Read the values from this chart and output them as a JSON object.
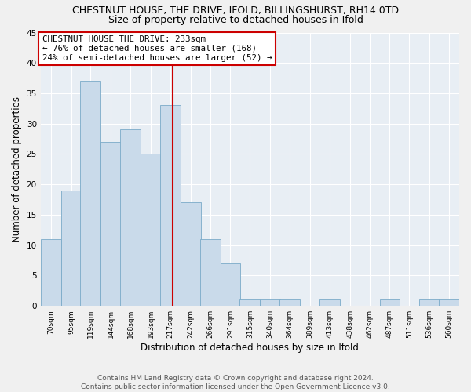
{
  "title1": "CHESTNUT HOUSE, THE DRIVE, IFOLD, BILLINGSHURST, RH14 0TD",
  "title2": "Size of property relative to detached houses in Ifold",
  "xlabel": "Distribution of detached houses by size in Ifold",
  "ylabel": "Number of detached properties",
  "footer1": "Contains HM Land Registry data © Crown copyright and database right 2024.",
  "footer2": "Contains public sector information licensed under the Open Government Licence v3.0.",
  "bar_edges": [
    70,
    95,
    119,
    144,
    168,
    193,
    217,
    242,
    266,
    291,
    315,
    340,
    364,
    389,
    413,
    438,
    462,
    487,
    511,
    536,
    560
  ],
  "bar_heights": [
    11,
    19,
    37,
    27,
    29,
    25,
    33,
    17,
    11,
    7,
    1,
    1,
    1,
    0,
    1,
    0,
    0,
    1,
    0,
    1,
    1
  ],
  "bar_color": "#c9daea",
  "bar_edge_color": "#7aaac8",
  "vline_x": 233,
  "vline_color": "#cc0000",
  "annotation_title": "CHESTNUT HOUSE THE DRIVE: 233sqm",
  "annotation_line2": "← 76% of detached houses are smaller (168)",
  "annotation_line3": "24% of semi-detached houses are larger (52) →",
  "annotation_box_color": "#ffffff",
  "annotation_box_edge": "#cc0000",
  "ylim": [
    0,
    45
  ],
  "yticks": [
    0,
    5,
    10,
    15,
    20,
    25,
    30,
    35,
    40,
    45
  ],
  "bg_color": "#e8eef4",
  "grid_color": "#ffffff",
  "title1_fontsize": 9,
  "title2_fontsize": 9,
  "xlabel_fontsize": 8.5,
  "ylabel_fontsize": 8.5,
  "footer_fontsize": 6.5
}
